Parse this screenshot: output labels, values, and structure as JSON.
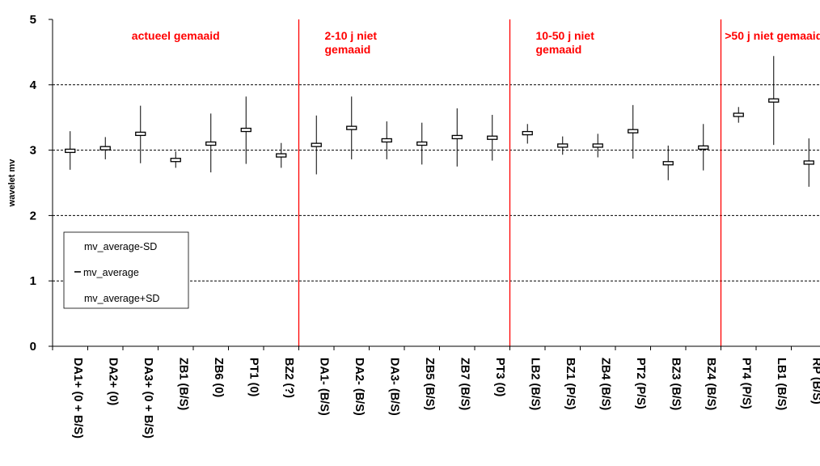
{
  "chart_data": {
    "type": "stock-hilo",
    "ylabel": "wavelet mv",
    "ylim": [
      0,
      5
    ],
    "yticks": [
      0,
      1,
      2,
      3,
      4,
      5
    ],
    "grid": "dashed horizontal at 1, 2, 3, 4",
    "categories": [
      "DA1+ (0 + B/S)",
      "DA2+ (0)",
      "DA3+ (0 + B/S)",
      "ZB1 (B/S)",
      "ZB6 (0)",
      "PT1 (0)",
      "BZ2 (?)",
      "DA1- (B/S)",
      "DA2- (B/S)",
      "DA3- (B/S)",
      "ZB5 (B/S)",
      "ZB7 (B/S)",
      "PT3 (0)",
      "LB2 (B/S)",
      "BZ1 (P/S)",
      "ZB4 (B/S)",
      "PT2 (P/S)",
      "BZ3 (B/S)",
      "BZ4 (B/S)",
      "PT4 (P/S)",
      "LB1 (B/S)",
      "RP (B/S)"
    ],
    "series": [
      {
        "name": "mv_average-SD",
        "values": [
          2.7,
          2.86,
          2.8,
          2.73,
          2.66,
          2.79,
          2.73,
          2.63,
          2.86,
          2.86,
          2.78,
          2.75,
          2.84,
          3.1,
          2.93,
          2.89,
          2.87,
          2.54,
          2.69,
          3.42,
          3.08,
          2.44
        ]
      },
      {
        "name": "mv_average",
        "values": [
          2.99,
          3.03,
          3.25,
          2.85,
          3.1,
          3.31,
          2.92,
          3.08,
          3.34,
          3.15,
          3.1,
          3.2,
          3.19,
          3.26,
          3.07,
          3.07,
          3.29,
          2.8,
          3.04,
          3.54,
          3.76,
          2.81
        ]
      },
      {
        "name": "mv_average+SD",
        "values": [
          3.29,
          3.2,
          3.68,
          2.98,
          3.56,
          3.82,
          3.11,
          3.53,
          3.82,
          3.44,
          3.42,
          3.64,
          3.54,
          3.4,
          3.21,
          3.25,
          3.69,
          3.07,
          3.4,
          3.66,
          4.44,
          3.18
        ]
      }
    ],
    "groups": [
      {
        "label": "actueel gemaaid",
        "start": 0,
        "end": 6
      },
      {
        "label": "2-10 j niet gemaaid",
        "start": 7,
        "end": 12
      },
      {
        "label": "10-50 j niet gemaaid",
        "start": 13,
        "end": 18
      },
      {
        "label": ">50 j niet gemaaid",
        "start": 19,
        "end": 21
      }
    ],
    "legend": {
      "placement": "lower-left",
      "entries": [
        "mv_average-SD",
        "mv_average",
        "mv_average+SD"
      ]
    },
    "colors": {
      "separator": "#ff0000",
      "group_label": "#ff0000",
      "marks": "#000000",
      "grid": "#000000"
    }
  }
}
